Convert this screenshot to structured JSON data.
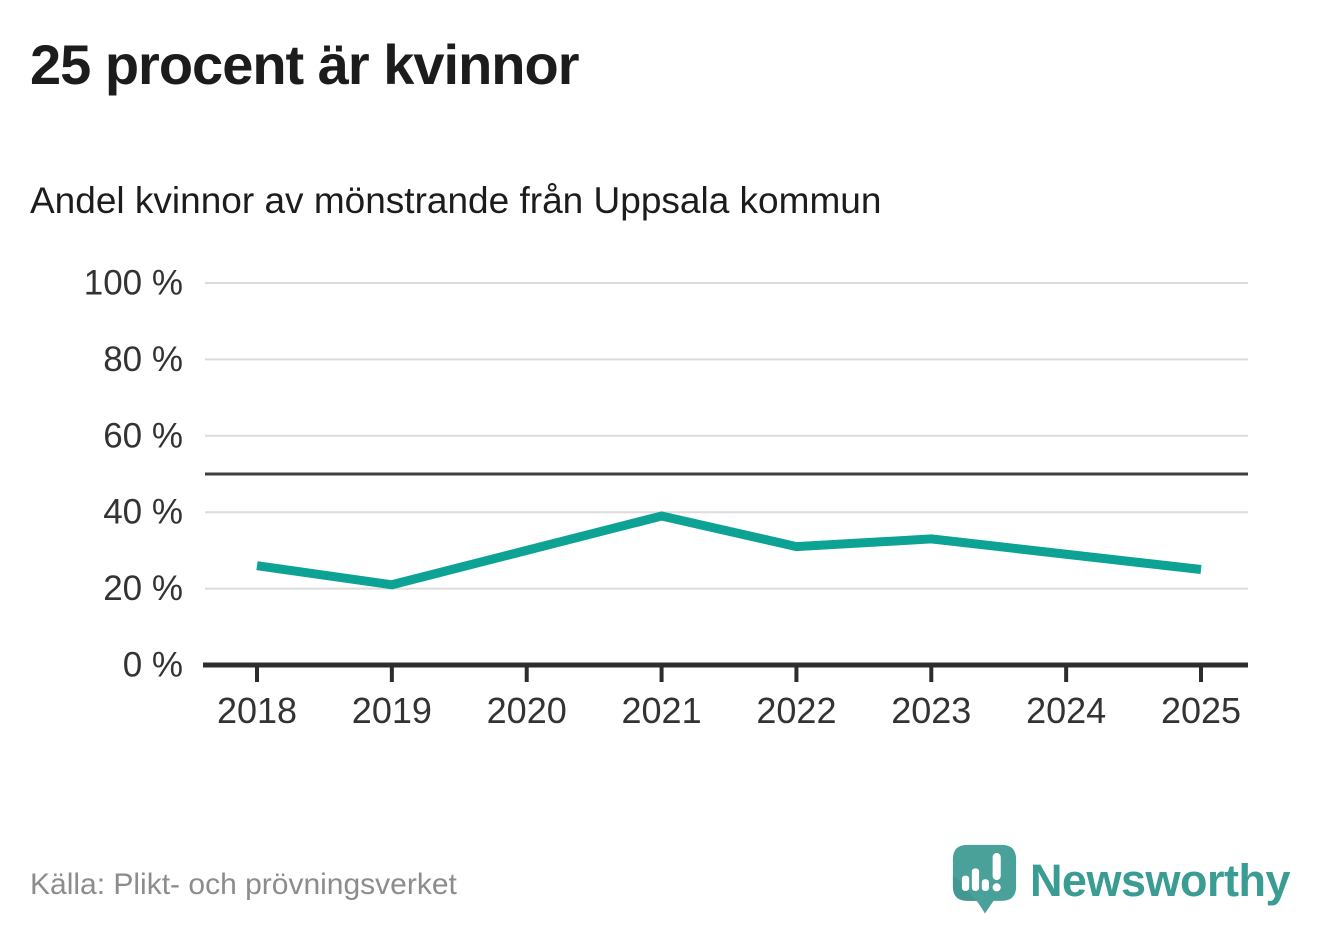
{
  "header": {
    "title": "25 procent är kvinnor",
    "subtitle": "Andel kvinnor av mönstrande från Uppsala kommun"
  },
  "footer": {
    "source": "Källa: Plikt- och prövningsverket",
    "brand": {
      "name": "Newsworthy",
      "icon": "newsworthy-speech-bubble-barchart-icon"
    }
  },
  "colors": {
    "line": "#0ca294",
    "grid": "#dcdcdc",
    "reference_line": "#3f3f3f",
    "axis": "#2d2d2d",
    "tick_label": "#333333",
    "source_text": "#8c8c8c",
    "brand_text": "#3b9c93",
    "brand_icon": "#4aa19a"
  },
  "chart_data": {
    "type": "line",
    "title": "25 procent är kvinnor",
    "subtitle": "Andel kvinnor av mönstrande från Uppsala kommun",
    "x": [
      "2018",
      "2019",
      "2020",
      "2021",
      "2022",
      "2023",
      "2024",
      "2025"
    ],
    "series": [
      {
        "name": "Andel kvinnor av mönstrande, Uppsala kommun",
        "color": "#0ca294",
        "values": [
          26,
          21,
          30,
          39,
          31,
          33,
          29,
          25
        ]
      }
    ],
    "unit": "%",
    "ylim": [
      0,
      100
    ],
    "yticks": [
      0,
      20,
      40,
      60,
      80,
      100
    ],
    "ytick_labels": [
      "0 %",
      "20 %",
      "40 %",
      "60 %",
      "80 %",
      "100 %"
    ],
    "reference_line": {
      "value": 50
    },
    "grid": true,
    "legend": "none"
  }
}
